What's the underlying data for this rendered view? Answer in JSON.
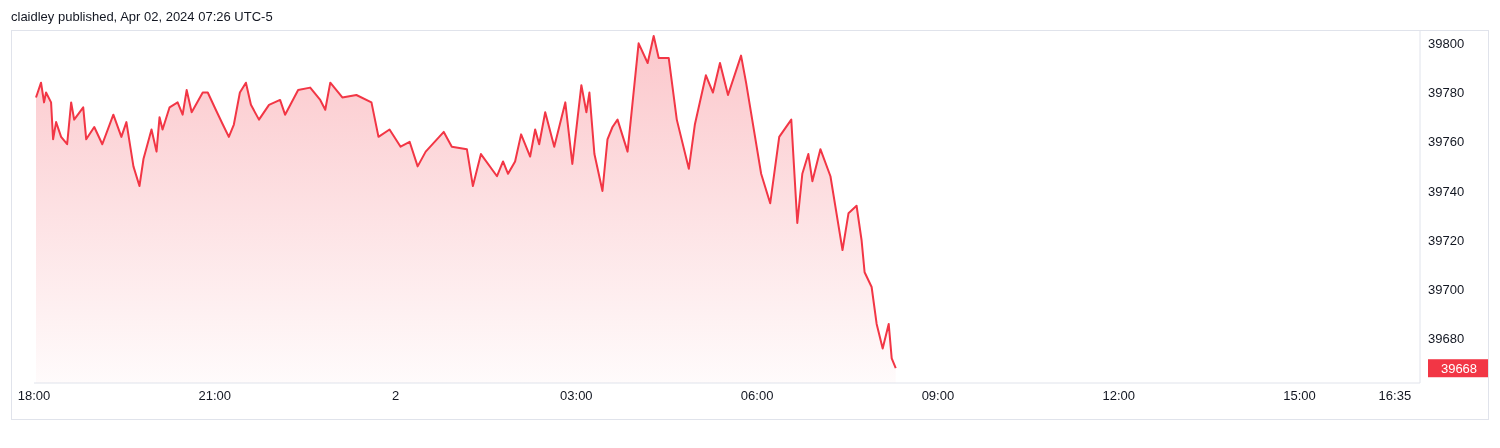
{
  "chart_data": {
    "type": "area",
    "title": "claidley published, Apr 02, 2024 07:26 UTC-5",
    "x": [
      "2024-04-01T18:02",
      "2024-04-01T18:07",
      "2024-04-01T18:10",
      "2024-04-01T18:12",
      "2024-04-01T18:17",
      "2024-04-01T18:19",
      "2024-04-01T18:22",
      "2024-04-01T18:27",
      "2024-04-01T18:33",
      "2024-04-01T18:37",
      "2024-04-01T18:40",
      "2024-04-01T18:49",
      "2024-04-01T18:52",
      "2024-04-01T19:00",
      "2024-04-01T19:08",
      "2024-04-01T19:19",
      "2024-04-01T19:27",
      "2024-04-01T19:32",
      "2024-04-01T19:39",
      "2024-04-01T19:45",
      "2024-04-01T19:49",
      "2024-04-01T19:57",
      "2024-04-01T20:02",
      "2024-04-01T20:05",
      "2024-04-01T20:08",
      "2024-04-01T20:15",
      "2024-04-01T20:23",
      "2024-04-01T20:28",
      "2024-04-01T20:32",
      "2024-04-01T20:37",
      "2024-04-01T20:48",
      "2024-04-01T20:53",
      "2024-04-01T21:01",
      "2024-04-01T21:08",
      "2024-04-01T21:14",
      "2024-04-01T21:19",
      "2024-04-01T21:25",
      "2024-04-01T21:31",
      "2024-04-01T21:36",
      "2024-04-01T21:44",
      "2024-04-01T21:54",
      "2024-04-01T22:05",
      "2024-04-01T22:10",
      "2024-04-01T22:23",
      "2024-04-01T22:35",
      "2024-04-01T22:45",
      "2024-04-01T22:50",
      "2024-04-01T22:55",
      "2024-04-01T23:07",
      "2024-04-01T23:21",
      "2024-04-01T23:36",
      "2024-04-01T23:43",
      "2024-04-01T23:54",
      "2024-04-02T00:05",
      "2024-04-02T00:14",
      "2024-04-02T00:22",
      "2024-04-02T00:30",
      "2024-04-02T00:48",
      "2024-04-02T00:56",
      "2024-04-02T01:11",
      "2024-04-02T01:17",
      "2024-04-02T01:25",
      "2024-04-02T01:41",
      "2024-04-02T01:47",
      "2024-04-02T01:52",
      "2024-04-02T01:59",
      "2024-04-02T02:05",
      "2024-04-02T02:14",
      "2024-04-02T02:19",
      "2024-04-02T02:23",
      "2024-04-02T02:29",
      "2024-04-02T02:38",
      "2024-04-02T02:49",
      "2024-04-02T02:56",
      "2024-04-02T03:05",
      "2024-04-02T03:10",
      "2024-04-02T03:13",
      "2024-04-02T03:18",
      "2024-04-02T03:26",
      "2024-04-02T03:31",
      "2024-04-02T03:36",
      "2024-04-02T03:41",
      "2024-04-02T03:51",
      "2024-04-02T03:56",
      "2024-04-02T04:02",
      "2024-04-02T04:11",
      "2024-04-02T04:17",
      "2024-04-02T04:22",
      "2024-04-02T04:32",
      "2024-04-02T04:40",
      "2024-04-02T04:52",
      "2024-04-02T04:58",
      "2024-04-02T05:09",
      "2024-04-02T05:16",
      "2024-04-02T05:23",
      "2024-04-02T05:31",
      "2024-04-02T05:44",
      "2024-04-02T05:49",
      "2024-04-02T06:04",
      "2024-04-02T06:13",
      "2024-04-02T06:22",
      "2024-04-02T06:34",
      "2024-04-02T06:40",
      "2024-04-02T06:45",
      "2024-04-02T06:51",
      "2024-04-02T06:55",
      "2024-04-02T07:03",
      "2024-04-02T07:13",
      "2024-04-02T07:25",
      "2024-04-02T07:31",
      "2024-04-02T07:39",
      "2024-04-02T07:44",
      "2024-04-02T07:47",
      "2024-04-02T07:54",
      "2024-04-02T07:59",
      "2024-04-02T08:05",
      "2024-04-02T08:11",
      "2024-04-02T08:14",
      "2024-04-02T08:18"
    ],
    "series": [
      {
        "color": "#f23645",
        "values": [
          39778,
          39784,
          39776,
          39780,
          39776,
          39761,
          39768,
          39762,
          39759,
          39776,
          39769,
          39774,
          39761,
          39766,
          39759,
          39771,
          39762,
          39768,
          39750,
          39742,
          39753,
          39765,
          39756,
          39770,
          39765,
          39774,
          39776,
          39771,
          39781,
          39772,
          39780,
          39780,
          39773,
          39767,
          39762,
          39767,
          39780,
          39784,
          39775,
          39769,
          39775,
          39777,
          39771,
          39781,
          39782,
          39777,
          39773,
          39784,
          39778,
          39779,
          39776,
          39762,
          39765,
          39758,
          39760,
          39750,
          39756,
          39764,
          39758,
          39757,
          39742,
          39755,
          39746,
          39752,
          39747,
          39752,
          39763,
          39754,
          39765,
          39759,
          39772,
          39758,
          39776,
          39751,
          39783,
          39772,
          39780,
          39755,
          39740,
          39761,
          39766,
          39769,
          39756,
          39776,
          39800,
          39792,
          39803,
          39794,
          39794,
          39769,
          39749,
          39767,
          39787,
          39780,
          39792,
          39779,
          39795,
          39784,
          39747,
          39735,
          39762,
          39769,
          39727,
          39747,
          39755,
          39744,
          39757,
          39746,
          39716,
          39731,
          39734,
          39720,
          39707,
          39701,
          39686,
          39676,
          39686,
          39672,
          39668
        ]
      }
    ],
    "xlim": [
      "2024-04-01T18:00",
      "2024-04-02T17:00"
    ],
    "xticks": [
      {
        "value": "2024-04-01T18:00",
        "label": "18:00"
      },
      {
        "value": "2024-04-01T21:00",
        "label": "21:00"
      },
      {
        "value": "2024-04-02T00:00",
        "label": "2"
      },
      {
        "value": "2024-04-02T03:00",
        "label": "03:00"
      },
      {
        "value": "2024-04-02T06:00",
        "label": "06:00"
      },
      {
        "value": "2024-04-02T09:00",
        "label": "09:00"
      },
      {
        "value": "2024-04-02T12:00",
        "label": "12:00"
      },
      {
        "value": "2024-04-02T15:00",
        "label": "15:00"
      },
      {
        "value": "2024-04-02T16:35",
        "label": "16:35"
      }
    ],
    "ylim": [
      39662,
      39805
    ],
    "yticks": [
      39680,
      39700,
      39720,
      39740,
      39760,
      39780,
      39800
    ],
    "annotations": [
      "39668"
    ]
  }
}
